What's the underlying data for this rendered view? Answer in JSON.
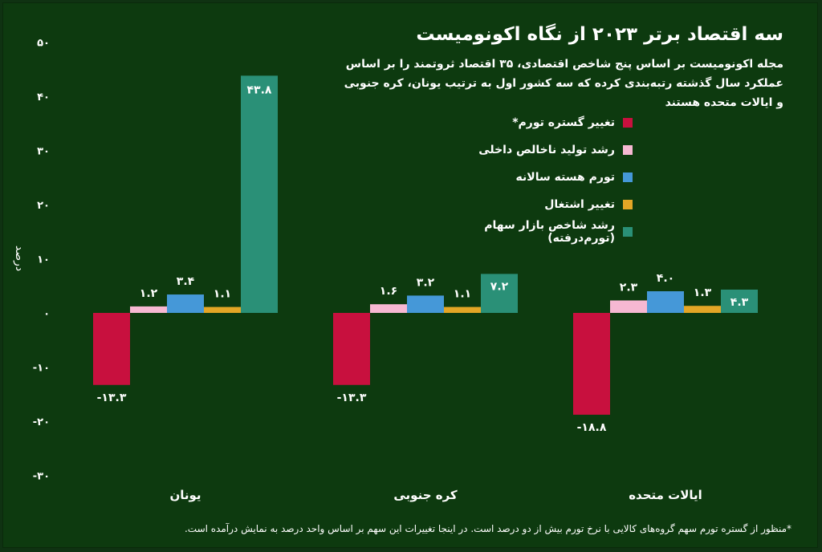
{
  "chart_data": {
    "type": "bar",
    "title": "سه اقتصاد برتر ۲۰۲۳ از نگاه اکونومیست",
    "subtitle": "مجله اکونومیست بر اساس پنج شاخص اقتصادی، ۳۵ اقتصاد ثروتمند را بر اساس عملکرد سال گذشته رتبه‌بندی کرده که سه کشور اول به ترتیب یونان، کره جنوبی و ایالات متحده هستند",
    "ylabel": "درصد",
    "ylim": [
      -30,
      50
    ],
    "yticks": [
      50,
      40,
      30,
      20,
      10,
      0,
      -10,
      -20,
      -30
    ],
    "ytick_labels": [
      "۵۰",
      "۴۰",
      "۳۰",
      "۲۰",
      "۱۰",
      "۰",
      "-۱۰",
      "-۲۰",
      "-۳۰"
    ],
    "categories": [
      "یونان",
      "کره جنوبی",
      "ایالات متحده"
    ],
    "series": [
      {
        "name": "تغییر گستره تورم*",
        "color": "#c8103e",
        "values": [
          -13.3,
          -13.3,
          -18.8
        ],
        "labels": [
          "-۱۳.۳",
          "-۱۳.۳",
          "-۱۸.۸"
        ]
      },
      {
        "name": "رشد تولید ناخالص داخلی",
        "color": "#f6b8d2",
        "values": [
          1.2,
          1.6,
          2.3
        ],
        "labels": [
          "۱.۲",
          "۱.۶",
          "۲.۳"
        ]
      },
      {
        "name": "تورم هسته سالانه",
        "color": "#4598d8",
        "values": [
          3.4,
          3.2,
          4.0
        ],
        "labels": [
          "۳.۴",
          "۳.۲",
          "۴.۰"
        ]
      },
      {
        "name": "تغییر اشتغال",
        "color": "#e3a626",
        "values": [
          1.1,
          1.1,
          1.3
        ],
        "labels": [
          "۱.۱",
          "۱.۱",
          "۱.۳"
        ]
      },
      {
        "name": "رشد شاخص بازار سهام (تورم‌درفته)",
        "color": "#2a9077",
        "values": [
          43.8,
          7.2,
          4.3
        ],
        "labels": [
          "۴۳.۸",
          "۷.۲",
          "۴.۳"
        ]
      }
    ],
    "grid": false,
    "legend_position": "top-right"
  },
  "footnote": "*منظور از گستره تورم سهم گروه‌های کالایی با نرخ تورم بیش از دو درصد است. در اینجا تغییرات این سهم بر اساس واحد درصد به نمایش درآمده است.",
  "colors": {
    "background": "#0d3a0f",
    "text": "#ffffff"
  }
}
